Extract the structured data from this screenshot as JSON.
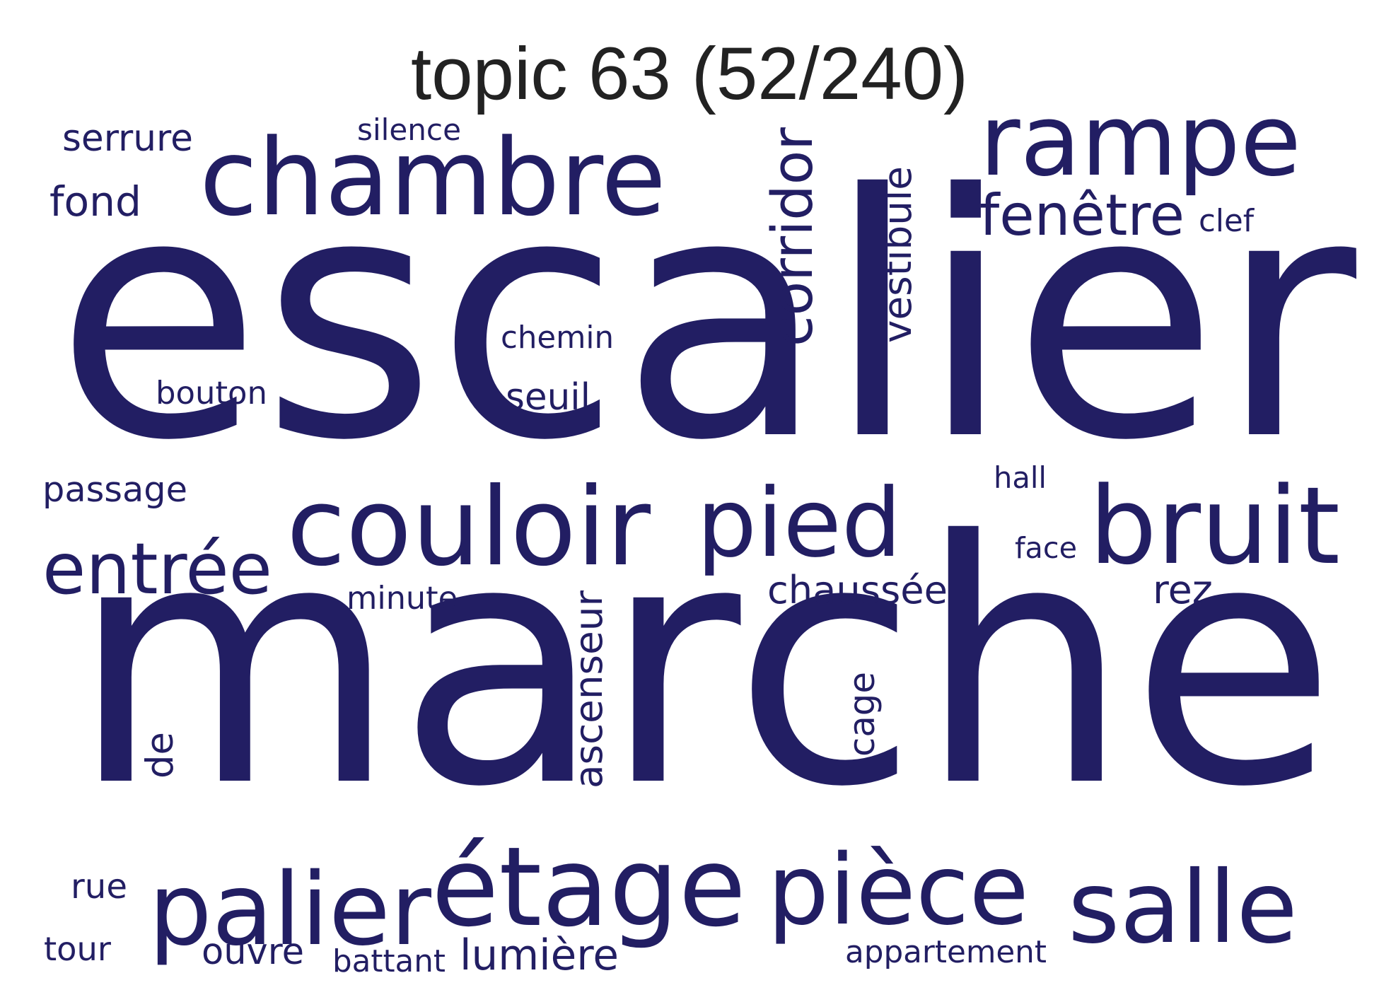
{
  "title": "topic 63 (52/240)",
  "word_color": "#221e63",
  "words": [
    {
      "text": "escalier",
      "weight": 1.0,
      "orientation": "horizontal"
    },
    {
      "text": "marche",
      "weight": 0.98,
      "orientation": "horizontal"
    },
    {
      "text": "couloir",
      "weight": 0.34,
      "orientation": "horizontal"
    },
    {
      "text": "pied",
      "weight": 0.34,
      "orientation": "horizontal"
    },
    {
      "text": "chambre",
      "weight": 0.3,
      "orientation": "horizontal"
    },
    {
      "text": "pièce",
      "weight": 0.3,
      "orientation": "horizontal"
    },
    {
      "text": "palier",
      "weight": 0.3,
      "orientation": "horizontal"
    },
    {
      "text": "étage",
      "weight": 0.28,
      "orientation": "horizontal"
    },
    {
      "text": "rampe",
      "weight": 0.27,
      "orientation": "horizontal"
    },
    {
      "text": "bruit",
      "weight": 0.27,
      "orientation": "horizontal"
    },
    {
      "text": "salle",
      "weight": 0.25,
      "orientation": "horizontal"
    },
    {
      "text": "entrée",
      "weight": 0.19,
      "orientation": "horizontal"
    },
    {
      "text": "corridor",
      "weight": 0.14,
      "orientation": "vertical"
    },
    {
      "text": "fenêtre",
      "weight": 0.12,
      "orientation": "horizontal"
    },
    {
      "text": "ascenseur",
      "weight": 0.085,
      "orientation": "vertical"
    },
    {
      "text": "vestibule",
      "weight": 0.085,
      "orientation": "vertical"
    },
    {
      "text": "chaussée",
      "weight": 0.085,
      "orientation": "horizontal"
    },
    {
      "text": "lumière",
      "weight": 0.075,
      "orientation": "horizontal"
    },
    {
      "text": "seuil",
      "weight": 0.07,
      "orientation": "horizontal"
    },
    {
      "text": "fond",
      "weight": 0.07,
      "orientation": "horizontal"
    },
    {
      "text": "cage",
      "weight": 0.065,
      "orientation": "vertical"
    },
    {
      "text": "passage",
      "weight": 0.06,
      "orientation": "horizontal"
    },
    {
      "text": "serrure",
      "weight": 0.06,
      "orientation": "horizontal"
    },
    {
      "text": "de",
      "weight": 0.06,
      "orientation": "vertical"
    },
    {
      "text": "rez",
      "weight": 0.055,
      "orientation": "horizontal"
    },
    {
      "text": "ouvre",
      "weight": 0.055,
      "orientation": "horizontal"
    },
    {
      "text": "chemin",
      "weight": 0.05,
      "orientation": "horizontal"
    },
    {
      "text": "bouton",
      "weight": 0.05,
      "orientation": "horizontal"
    },
    {
      "text": "hall",
      "weight": 0.05,
      "orientation": "horizontal"
    },
    {
      "text": "face",
      "weight": 0.05,
      "orientation": "horizontal"
    },
    {
      "text": "rue",
      "weight": 0.05,
      "orientation": "horizontal"
    },
    {
      "text": "clef",
      "weight": 0.05,
      "orientation": "horizontal"
    },
    {
      "text": "appartement",
      "weight": 0.045,
      "orientation": "horizontal"
    },
    {
      "text": "minute",
      "weight": 0.045,
      "orientation": "horizontal"
    },
    {
      "text": "silence",
      "weight": 0.045,
      "orientation": "horizontal"
    },
    {
      "text": "tour",
      "weight": 0.045,
      "orientation": "horizontal"
    },
    {
      "text": "battant",
      "weight": 0.045,
      "orientation": "horizontal"
    }
  ]
}
